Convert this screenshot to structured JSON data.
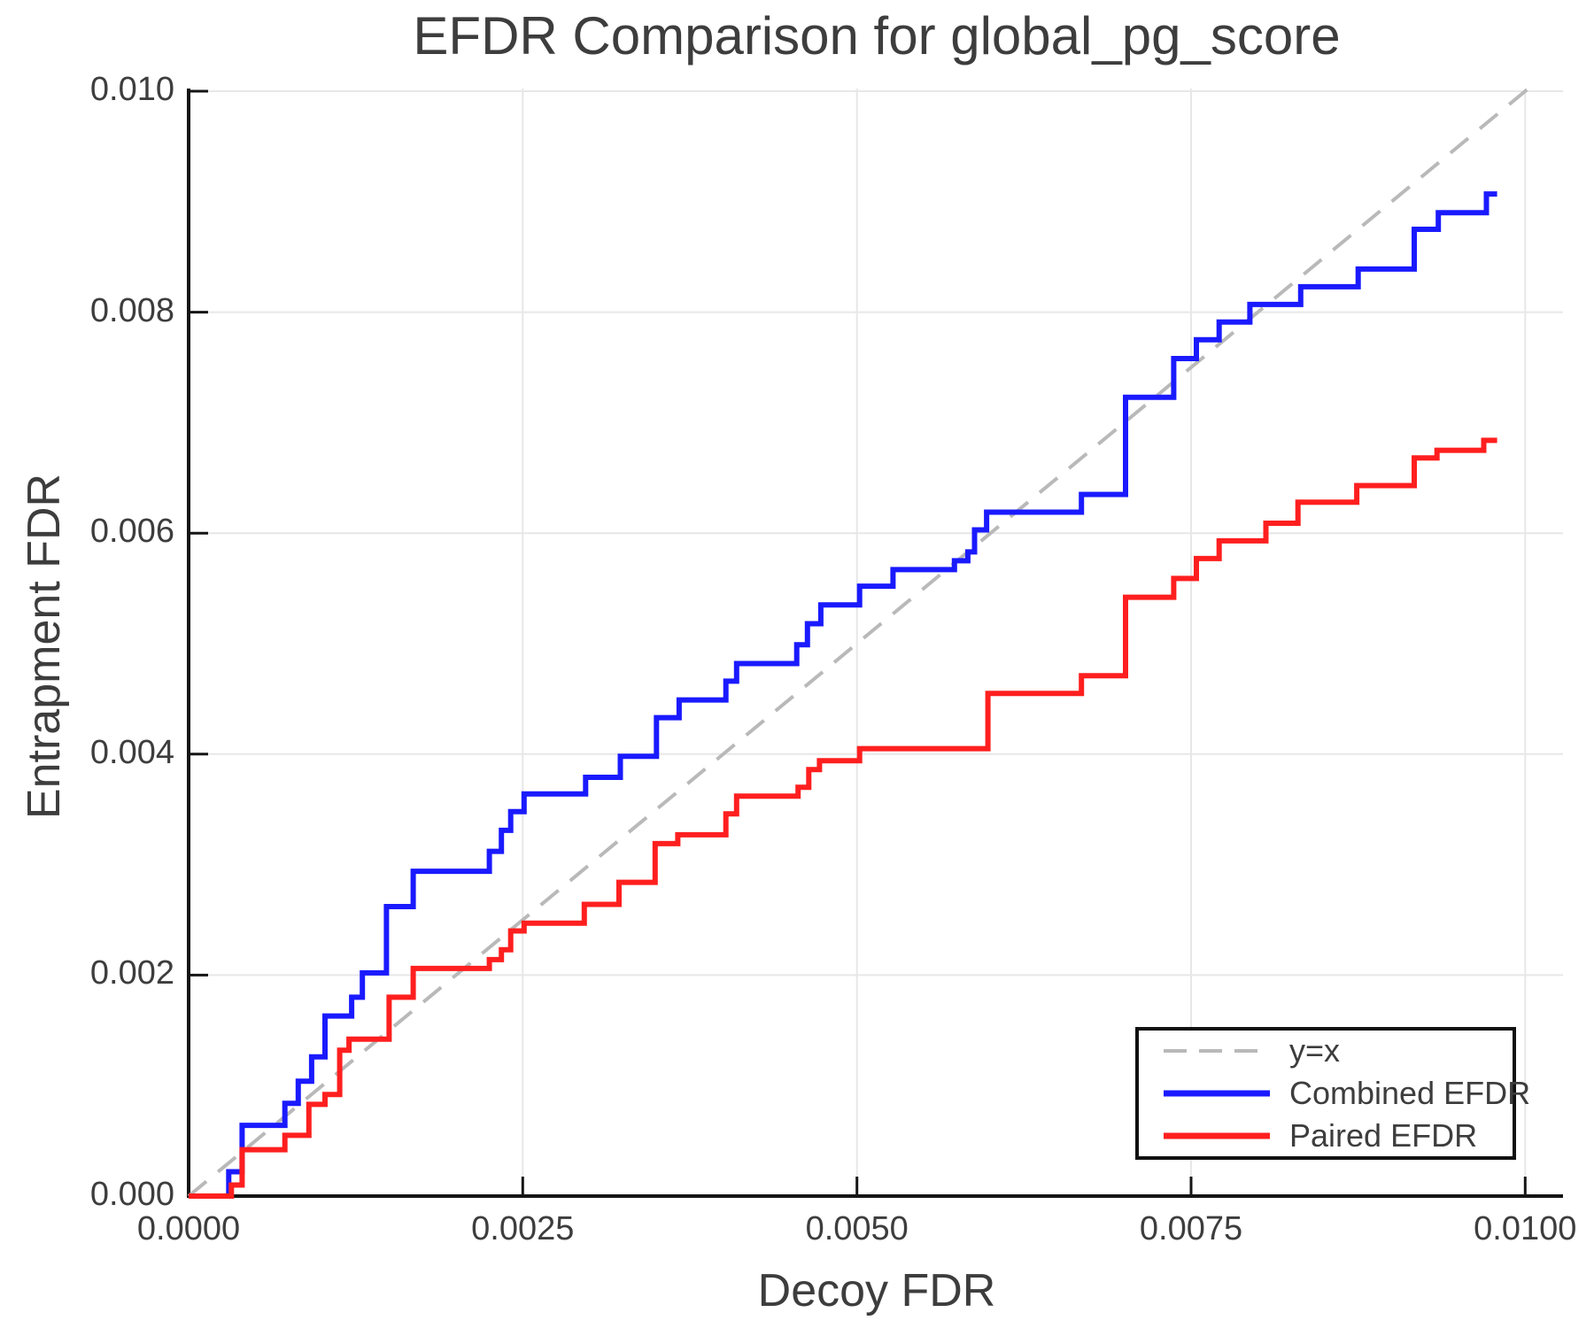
{
  "chart_data": {
    "type": "line",
    "title": "EFDR Comparison for global_pg_score",
    "xlabel": "Decoy FDR",
    "ylabel": "Entrapment FDR",
    "xlim": [
      0.0,
      0.0103
    ],
    "ylim": [
      0.0,
      0.01
    ],
    "grid": true,
    "xticks": {
      "values": [
        0.0,
        0.0025,
        0.005,
        0.0075,
        0.01
      ],
      "labels": [
        "0.0000",
        "0.0025",
        "0.0050",
        "0.0075",
        "0.0100"
      ]
    },
    "yticks": {
      "values": [
        0.0,
        0.002,
        0.004,
        0.006,
        0.008,
        0.01
      ],
      "labels": [
        "0.000",
        "0.002",
        "0.004",
        "0.006",
        "0.008",
        "0.010"
      ]
    },
    "colors": {
      "combined": "#1a1aff",
      "paired": "#ff1f1f",
      "identity": "#b9b9b9",
      "grid": "#e7e7e7",
      "axis": "#151515",
      "text": "#3d3d3d"
    },
    "legend": {
      "position": "lower right",
      "items": [
        {
          "label": "y=x"
        },
        {
          "label": "Combined EFDR"
        },
        {
          "label": "Paired EFDR"
        }
      ]
    },
    "series": [
      {
        "name": "y=x",
        "style": "dashed",
        "points": [
          [
            0.0,
            0.0
          ],
          [
            0.01002,
            0.01002
          ]
        ]
      },
      {
        "name": "Combined EFDR",
        "style": "step",
        "start": [
          0.0,
          0.0
        ],
        "end_x": 0.00979,
        "steps": [
          [
            0.0003,
            0.00022
          ],
          [
            0.0004,
            0.00064
          ],
          [
            0.00072,
            0.00084
          ],
          [
            0.00082,
            0.00104
          ],
          [
            0.00092,
            0.00126
          ],
          [
            0.00102,
            0.00163
          ],
          [
            0.00122,
            0.0018
          ],
          [
            0.0013,
            0.00202
          ],
          [
            0.00148,
            0.00262
          ],
          [
            0.00168,
            0.00294
          ],
          [
            0.00225,
            0.00312
          ],
          [
            0.00234,
            0.00331
          ],
          [
            0.00241,
            0.00348
          ],
          [
            0.00251,
            0.00364
          ],
          [
            0.00297,
            0.00379
          ],
          [
            0.00323,
            0.00398
          ],
          [
            0.0035,
            0.00433
          ],
          [
            0.00367,
            0.00449
          ],
          [
            0.00402,
            0.00466
          ],
          [
            0.0041,
            0.00482
          ],
          [
            0.00455,
            0.00499
          ],
          [
            0.00463,
            0.00518
          ],
          [
            0.00473,
            0.00535
          ],
          [
            0.00502,
            0.00552
          ],
          [
            0.00527,
            0.00567
          ],
          [
            0.00573,
            0.00575
          ],
          [
            0.00583,
            0.00583
          ],
          [
            0.00588,
            0.00603
          ],
          [
            0.00597,
            0.00619
          ],
          [
            0.00668,
            0.00635
          ],
          [
            0.00701,
            0.00723
          ],
          [
            0.00737,
            0.00758
          ],
          [
            0.00754,
            0.00775
          ],
          [
            0.00771,
            0.00791
          ],
          [
            0.00794,
            0.00807
          ],
          [
            0.00832,
            0.00823
          ],
          [
            0.00875,
            0.00839
          ],
          [
            0.00917,
            0.00875
          ],
          [
            0.00935,
            0.0089
          ],
          [
            0.00971,
            0.00907
          ]
        ]
      },
      {
        "name": "Paired EFDR",
        "style": "step",
        "start": [
          0.0,
          0.0
        ],
        "end_x": 0.00979,
        "steps": [
          [
            0.00032,
            0.0001
          ],
          [
            0.0004,
            0.00042
          ],
          [
            0.00072,
            0.00055
          ],
          [
            0.0009,
            0.00083
          ],
          [
            0.00102,
            0.00092
          ],
          [
            0.00113,
            0.00132
          ],
          [
            0.0012,
            0.00142
          ],
          [
            0.0015,
            0.0018
          ],
          [
            0.00168,
            0.00206
          ],
          [
            0.00225,
            0.00214
          ],
          [
            0.00234,
            0.00223
          ],
          [
            0.00241,
            0.0024
          ],
          [
            0.00251,
            0.00247
          ],
          [
            0.00296,
            0.00264
          ],
          [
            0.00322,
            0.00284
          ],
          [
            0.00349,
            0.00319
          ],
          [
            0.00366,
            0.00327
          ],
          [
            0.00402,
            0.00346
          ],
          [
            0.0041,
            0.00362
          ],
          [
            0.00456,
            0.0037
          ],
          [
            0.00464,
            0.00386
          ],
          [
            0.00472,
            0.00394
          ],
          [
            0.00502,
            0.00405
          ],
          [
            0.00598,
            0.00455
          ],
          [
            0.00668,
            0.00471
          ],
          [
            0.00701,
            0.00542
          ],
          [
            0.00737,
            0.00559
          ],
          [
            0.00754,
            0.00577
          ],
          [
            0.00771,
            0.00593
          ],
          [
            0.00806,
            0.00609
          ],
          [
            0.0083,
            0.00628
          ],
          [
            0.00874,
            0.00643
          ],
          [
            0.00917,
            0.00668
          ],
          [
            0.00934,
            0.00675
          ],
          [
            0.00969,
            0.00684
          ]
        ]
      }
    ]
  }
}
